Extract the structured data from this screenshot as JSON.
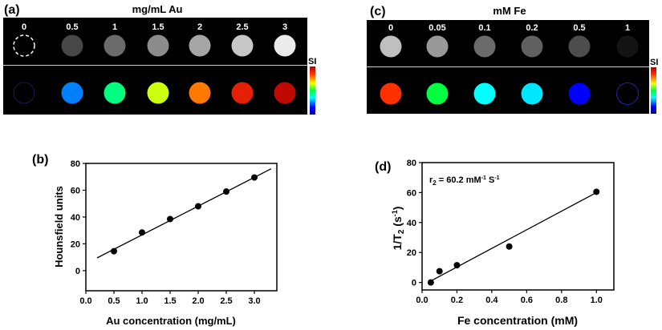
{
  "panel_a": {
    "label": "(a)",
    "title": "mg/mL Au",
    "concentrations": [
      "0",
      "0.5",
      "1",
      "1.5",
      "2",
      "2.5",
      "3"
    ],
    "gray_levels": [
      0,
      0.28,
      0.42,
      0.55,
      0.65,
      0.78,
      0.92
    ],
    "color_levels": [
      0,
      0.25,
      0.45,
      0.62,
      0.78,
      0.9,
      0.97
    ],
    "colorbar_label": "SI"
  },
  "panel_c": {
    "label": "(c)",
    "title": "mM Fe",
    "concentrations": [
      "0",
      "0.05",
      "0.1",
      "0.2",
      "0.5",
      "1"
    ],
    "gray_levels": [
      0.75,
      0.6,
      0.42,
      0.38,
      0.3,
      0.08
    ],
    "color_levels": [
      0.85,
      0.5,
      0.35,
      0.33,
      0.15,
      0.05
    ],
    "colorbar_label": "SI"
  },
  "chart_data": [
    {
      "panel_label": "(b)",
      "type": "scatter",
      "xlabel": "Au concentration (mg/mL)",
      "ylabel": "Hounsfield units",
      "xlim": [
        0,
        3.4
      ],
      "ylim": [
        -15,
        80
      ],
      "xticks": [
        "0.0",
        "0.5",
        "1.0",
        "1.5",
        "2.0",
        "2.5",
        "3.0"
      ],
      "yticks": [
        "0",
        "20",
        "40",
        "60",
        "80"
      ],
      "x": [
        0.5,
        1.0,
        1.5,
        2.0,
        2.5,
        3.0
      ],
      "y": [
        14.5,
        28.5,
        38.5,
        48,
        59,
        69.5
      ],
      "fit_line": {
        "x": [
          0.2,
          3.3
        ],
        "y": [
          9.5,
          76
        ]
      },
      "grid": false
    },
    {
      "panel_label": "(d)",
      "type": "scatter",
      "xlabel": "Fe concentration (mM)",
      "ylabel": "1/T2 (s-1)",
      "annotation": "r2 = 60.2 mM-1 S-1",
      "xlim": [
        0,
        1.1
      ],
      "ylim": [
        -5,
        80
      ],
      "xticks": [
        "0.0",
        "0.2",
        "0.4",
        "0.6",
        "0.8",
        "1.0"
      ],
      "yticks": [
        "0",
        "20",
        "40",
        "60",
        "80"
      ],
      "x": [
        0.05,
        0.1,
        0.2,
        0.5,
        1.0
      ],
      "y": [
        0,
        7.5,
        11.5,
        24,
        60.5
      ],
      "fit_line": {
        "x": [
          0.05,
          1.0
        ],
        "y": [
          1,
          60
        ]
      },
      "grid": false
    }
  ]
}
